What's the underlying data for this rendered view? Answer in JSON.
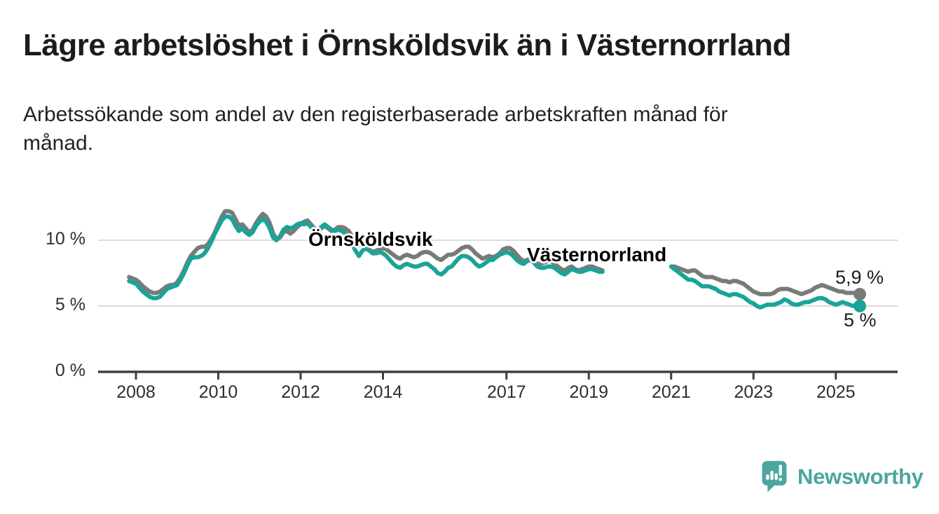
{
  "header": {
    "title": "Lägre arbetslöshet i Örnsköldsvik än i Västernorrland",
    "subtitle_lines": [
      "Arbetssökande som andel av den registerbaserade arbetskraften månad för",
      "månad."
    ]
  },
  "chart_data": {
    "type": "line",
    "unit": "%",
    "grid": "horizontal-only",
    "legend_position": "inline-labels-on-lines",
    "x_range": [
      "2007-11",
      "2025-08"
    ],
    "data_gap": [
      "2019-06",
      "2020-12"
    ],
    "ylim": [
      0,
      13
    ],
    "start": {
      "year": 2007,
      "month": 11
    },
    "x_axis": {
      "tick_years": [
        2008,
        2010,
        2012,
        2014,
        2017,
        2019,
        2021,
        2023,
        2025
      ]
    },
    "y_axis": {
      "ticks": [
        {
          "value": 0,
          "label": "0 %"
        },
        {
          "value": 5,
          "label": "5 %"
        },
        {
          "value": 10,
          "label": "10 %"
        }
      ]
    },
    "series": [
      {
        "name": "Västernorrland",
        "color": "#7a7a7a",
        "end_value_label": "5,9 %",
        "frequency": "monthly",
        "values": [
          7.2,
          7.1,
          7.0,
          6.8,
          6.5,
          6.3,
          6.1,
          6.0,
          6.0,
          6.1,
          6.3,
          6.5,
          6.6,
          6.6,
          6.8,
          7.2,
          7.7,
          8.3,
          8.8,
          9.1,
          9.4,
          9.5,
          9.5,
          9.7,
          10.1,
          10.6,
          11.2,
          11.8,
          12.2,
          12.2,
          12.1,
          11.6,
          11.1,
          11.2,
          10.9,
          10.6,
          10.8,
          11.3,
          11.7,
          12.0,
          11.8,
          11.3,
          10.5,
          10.1,
          10.2,
          10.6,
          10.7,
          10.5,
          10.7,
          11.0,
          11.2,
          11.4,
          11.5,
          11.2,
          10.9,
          10.7,
          10.9,
          11.1,
          10.9,
          10.7,
          10.8,
          11.0,
          11.0,
          10.9,
          10.7,
          10.3,
          9.9,
          9.6,
          9.8,
          9.6,
          9.3,
          9.1,
          9.2,
          9.3,
          9.4,
          9.3,
          9.1,
          8.9,
          8.7,
          8.6,
          8.8,
          8.9,
          8.8,
          8.7,
          8.8,
          9.0,
          9.1,
          9.1,
          9.0,
          8.8,
          8.6,
          8.5,
          8.7,
          8.9,
          8.9,
          9.0,
          9.2,
          9.4,
          9.5,
          9.5,
          9.3,
          9.0,
          8.8,
          8.6,
          8.7,
          8.8,
          8.7,
          8.8,
          9.0,
          9.3,
          9.4,
          9.4,
          9.2,
          8.9,
          8.6,
          8.4,
          8.5,
          8.6,
          8.4,
          8.2,
          8.2,
          8.3,
          8.4,
          8.4,
          8.2,
          8.0,
          7.8,
          7.7,
          7.9,
          8.0,
          7.8,
          7.7,
          7.8,
          7.9,
          8.0,
          8.0,
          7.9,
          7.8,
          7.7,
          null,
          null,
          null,
          null,
          null,
          null,
          null,
          null,
          null,
          null,
          null,
          null,
          null,
          null,
          null,
          null,
          null,
          null,
          null,
          8.0,
          8.0,
          7.9,
          7.8,
          7.7,
          7.6,
          7.7,
          7.7,
          7.5,
          7.3,
          7.2,
          7.2,
          7.2,
          7.1,
          7.0,
          6.9,
          6.9,
          6.8,
          6.9,
          6.9,
          6.8,
          6.7,
          6.5,
          6.3,
          6.1,
          6.0,
          5.9,
          5.9,
          5.9,
          5.9,
          6.0,
          6.2,
          6.3,
          6.3,
          6.3,
          6.2,
          6.1,
          6.0,
          5.9,
          6.0,
          6.1,
          6.2,
          6.4,
          6.5,
          6.6,
          6.5,
          6.4,
          6.3,
          6.2,
          6.1,
          6.1,
          6.0,
          6.0,
          6.0,
          6.0,
          5.9
        ]
      },
      {
        "name": "Örnsköldsvik",
        "color": "#1aa498",
        "end_value_label": "5 %",
        "frequency": "monthly",
        "values": [
          6.9,
          6.8,
          6.7,
          6.4,
          6.1,
          5.9,
          5.7,
          5.6,
          5.6,
          5.7,
          6.0,
          6.3,
          6.4,
          6.5,
          6.6,
          7.0,
          7.5,
          8.1,
          8.6,
          8.7,
          8.7,
          8.8,
          9.0,
          9.4,
          9.9,
          10.5,
          11.0,
          11.5,
          11.8,
          11.8,
          11.6,
          11.1,
          10.7,
          10.9,
          10.6,
          10.4,
          10.6,
          11.1,
          11.4,
          11.6,
          11.4,
          10.9,
          10.2,
          10.0,
          10.3,
          10.8,
          11.0,
          10.9,
          11.0,
          11.2,
          11.3,
          11.2,
          11.3,
          11.0,
          10.8,
          10.7,
          11.0,
          11.2,
          11.0,
          10.8,
          10.7,
          10.8,
          10.7,
          10.5,
          10.2,
          9.7,
          9.2,
          8.8,
          9.2,
          9.4,
          9.2,
          9.0,
          9.0,
          9.1,
          9.0,
          8.8,
          8.5,
          8.2,
          8.0,
          7.9,
          8.1,
          8.2,
          8.1,
          8.0,
          8.0,
          8.1,
          8.2,
          8.2,
          8.0,
          7.8,
          7.5,
          7.4,
          7.6,
          7.9,
          8.0,
          8.3,
          8.6,
          8.8,
          8.8,
          8.7,
          8.5,
          8.2,
          8.0,
          8.1,
          8.3,
          8.5,
          8.5,
          8.7,
          8.9,
          9.0,
          9.1,
          9.0,
          8.8,
          8.5,
          8.3,
          8.2,
          8.4,
          8.5,
          8.3,
          8.0,
          7.9,
          7.9,
          8.0,
          8.0,
          7.9,
          7.7,
          7.5,
          7.4,
          7.6,
          7.8,
          7.7,
          7.6,
          7.6,
          7.7,
          7.8,
          7.8,
          7.7,
          7.6,
          7.6,
          null,
          null,
          null,
          null,
          null,
          null,
          null,
          null,
          null,
          null,
          null,
          null,
          null,
          null,
          null,
          null,
          null,
          null,
          null,
          8.0,
          7.8,
          7.6,
          7.4,
          7.2,
          7.0,
          7.0,
          6.9,
          6.7,
          6.5,
          6.5,
          6.5,
          6.4,
          6.3,
          6.1,
          6.0,
          5.9,
          5.8,
          5.9,
          5.9,
          5.8,
          5.7,
          5.5,
          5.3,
          5.2,
          5.0,
          4.9,
          5.0,
          5.1,
          5.1,
          5.1,
          5.2,
          5.3,
          5.5,
          5.4,
          5.2,
          5.1,
          5.1,
          5.2,
          5.3,
          5.3,
          5.4,
          5.5,
          5.6,
          5.6,
          5.5,
          5.3,
          5.2,
          5.1,
          5.2,
          5.3,
          5.2,
          5.1,
          5.0,
          5.1,
          5.0
        ]
      }
    ]
  },
  "colors": {
    "ornskoldsvik": "#1aa498",
    "vasternorrland": "#7a7a7a",
    "axis": "#3f3f3f",
    "gridline": "#dcdcdc",
    "text": "#1c1c1c"
  },
  "branding": {
    "logo_text": "Newsworthy",
    "logo_color": "#4ba69e"
  }
}
